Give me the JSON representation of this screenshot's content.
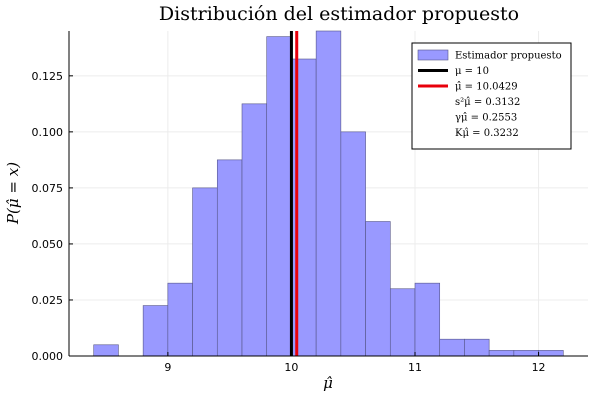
{
  "chart_data": {
    "type": "bar",
    "title": "Distribución del estimador propuesto",
    "xlabel": "μ̂",
    "ylabel": "P(μ̂ = x)",
    "xlim": [
      8.2,
      12.4
    ],
    "ylim": [
      0,
      0.145
    ],
    "xticks": [
      9,
      10,
      11,
      12
    ],
    "yticks": [
      0.0,
      0.025,
      0.05,
      0.075,
      0.1,
      0.125
    ],
    "ytick_labels": [
      "0.000",
      "0.025",
      "0.050",
      "0.075",
      "0.100",
      "0.125"
    ],
    "grid": true,
    "bin_width": 0.2,
    "bins": [
      {
        "x0": 8.4,
        "x1": 8.6,
        "value": 0.005
      },
      {
        "x0": 8.6,
        "x1": 8.8,
        "value": 0.0
      },
      {
        "x0": 8.8,
        "x1": 9.0,
        "value": 0.0225
      },
      {
        "x0": 9.0,
        "x1": 9.2,
        "value": 0.0325
      },
      {
        "x0": 9.2,
        "x1": 9.4,
        "value": 0.075
      },
      {
        "x0": 9.4,
        "x1": 9.6,
        "value": 0.0875
      },
      {
        "x0": 9.6,
        "x1": 9.8,
        "value": 0.1125
      },
      {
        "x0": 9.8,
        "x1": 10.0,
        "value": 0.1425
      },
      {
        "x0": 10.0,
        "x1": 10.2,
        "value": 0.1325
      },
      {
        "x0": 10.2,
        "x1": 10.4,
        "value": 0.145
      },
      {
        "x0": 10.4,
        "x1": 10.6,
        "value": 0.1
      },
      {
        "x0": 10.6,
        "x1": 10.8,
        "value": 0.06
      },
      {
        "x0": 10.8,
        "x1": 11.0,
        "value": 0.03
      },
      {
        "x0": 11.0,
        "x1": 11.2,
        "value": 0.0325
      },
      {
        "x0": 11.2,
        "x1": 11.4,
        "value": 0.0075
      },
      {
        "x0": 11.4,
        "x1": 11.6,
        "value": 0.0075
      },
      {
        "x0": 11.6,
        "x1": 11.8,
        "value": 0.0025
      },
      {
        "x0": 11.8,
        "x1": 12.0,
        "value": 0.0025
      },
      {
        "x0": 12.0,
        "x1": 12.2,
        "value": 0.0025
      }
    ],
    "vlines": [
      {
        "x": 10.0,
        "color": "#000000"
      },
      {
        "x": 10.0429,
        "color": "#e8000b"
      }
    ],
    "colors": {
      "bars": "#9999ff",
      "bar_edge": "#555588"
    },
    "legend": {
      "position": "top-right",
      "entries": [
        {
          "label": "Estimador propuesto",
          "kind": "patch",
          "color": "#9999ff"
        },
        {
          "label": "μ = 10",
          "kind": "line",
          "color": "#000000"
        },
        {
          "label": "μ̂ = 10.0429",
          "kind": "line",
          "color": "#e8000b"
        },
        {
          "label": "s²μ̂ = 0.3132",
          "kind": "none"
        },
        {
          "label": "γμ̂ = 0.2553",
          "kind": "none"
        },
        {
          "label": "Kμ̂ = 0.3232",
          "kind": "none"
        }
      ]
    }
  }
}
